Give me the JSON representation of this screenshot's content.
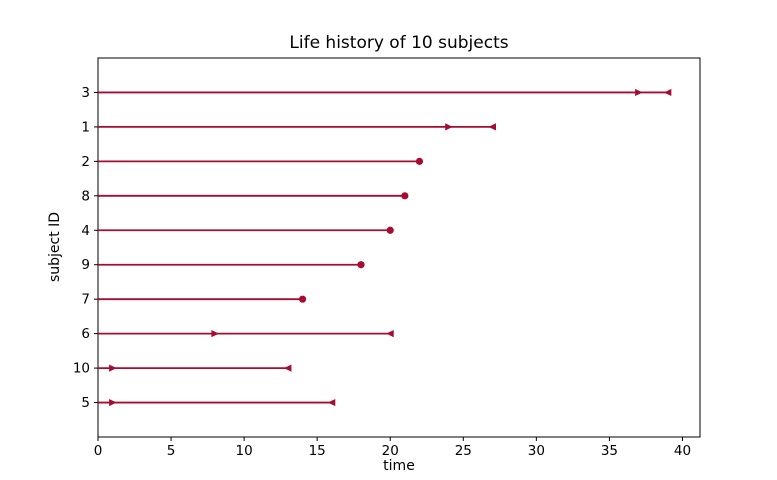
{
  "chart_data": {
    "type": "line",
    "subtype": "lifetime-horizontal-segments",
    "title": "Life history of 10 subjects",
    "xlabel": "time",
    "ylabel": "subject ID",
    "xlim": [
      0,
      41.2
    ],
    "ylim": [
      0,
      11
    ],
    "x_ticks": [
      0,
      5,
      10,
      15,
      20,
      25,
      30,
      35,
      40
    ],
    "y_tick_labels_top_to_bottom": [
      "3",
      "1",
      "2",
      "8",
      "4",
      "9",
      "7",
      "6",
      "10",
      "5"
    ],
    "line_color": "#A60C31",
    "axis_color": "#000000",
    "background_color": "#FFFFFF",
    "grid": false,
    "legend": "none",
    "subjects": [
      {
        "id": "3",
        "line_start": 0,
        "line_end": 39,
        "right_arrow_at": 37,
        "end_marker": "left-arrow"
      },
      {
        "id": "1",
        "line_start": 0,
        "line_end": 27,
        "right_arrow_at": 24,
        "end_marker": "left-arrow"
      },
      {
        "id": "2",
        "line_start": 0,
        "line_end": 22,
        "right_arrow_at": null,
        "end_marker": "dot"
      },
      {
        "id": "8",
        "line_start": 0,
        "line_end": 21,
        "right_arrow_at": null,
        "end_marker": "dot"
      },
      {
        "id": "4",
        "line_start": 0,
        "line_end": 20,
        "right_arrow_at": null,
        "end_marker": "dot"
      },
      {
        "id": "9",
        "line_start": 0,
        "line_end": 18,
        "right_arrow_at": null,
        "end_marker": "dot"
      },
      {
        "id": "7",
        "line_start": 0,
        "line_end": 14,
        "right_arrow_at": null,
        "end_marker": "dot"
      },
      {
        "id": "6",
        "line_start": 0,
        "line_end": 20,
        "right_arrow_at": 8,
        "end_marker": "left-arrow"
      },
      {
        "id": "10",
        "line_start": 0,
        "line_end": 13,
        "right_arrow_at": 1,
        "end_marker": "left-arrow"
      },
      {
        "id": "5",
        "line_start": 0,
        "line_end": 16,
        "right_arrow_at": 1,
        "end_marker": "left-arrow"
      }
    ]
  }
}
